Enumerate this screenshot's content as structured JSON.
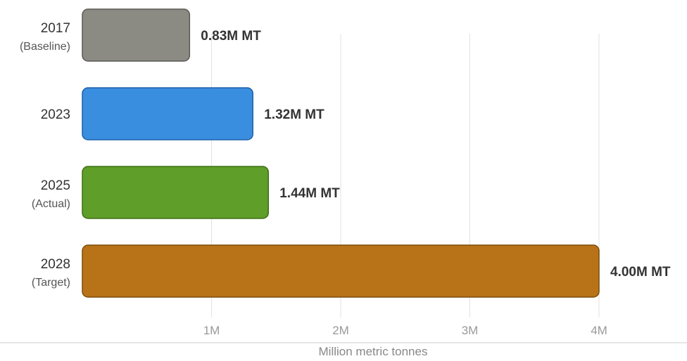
{
  "chart_data": {
    "type": "bar",
    "orientation": "horizontal",
    "categories": [
      {
        "label": "2017",
        "sublabel": "(Baseline)"
      },
      {
        "label": "2023",
        "sublabel": ""
      },
      {
        "label": "2025",
        "sublabel": "(Actual)"
      },
      {
        "label": "2028",
        "sublabel": "(Target)"
      }
    ],
    "values": [
      0.83,
      1.32,
      1.44,
      4.0
    ],
    "value_labels": [
      "0.83M MT",
      "1.32M MT",
      "1.44M MT",
      "4.00M MT"
    ],
    "colors": [
      "#8b8b84",
      "#3a8ee0",
      "#5f9e28",
      "#b87318"
    ],
    "border_colors": [
      "#5a5a55",
      "#1f5fa8",
      "#3f6e16",
      "#7d4d0c"
    ],
    "xlim": [
      0,
      4
    ],
    "xticks": [
      1,
      2,
      3,
      4
    ],
    "xtick_labels": [
      "1M",
      "2M",
      "3M",
      "4M"
    ],
    "xlabel": "Million metric tonnes",
    "title": "",
    "grid": "vertical"
  }
}
